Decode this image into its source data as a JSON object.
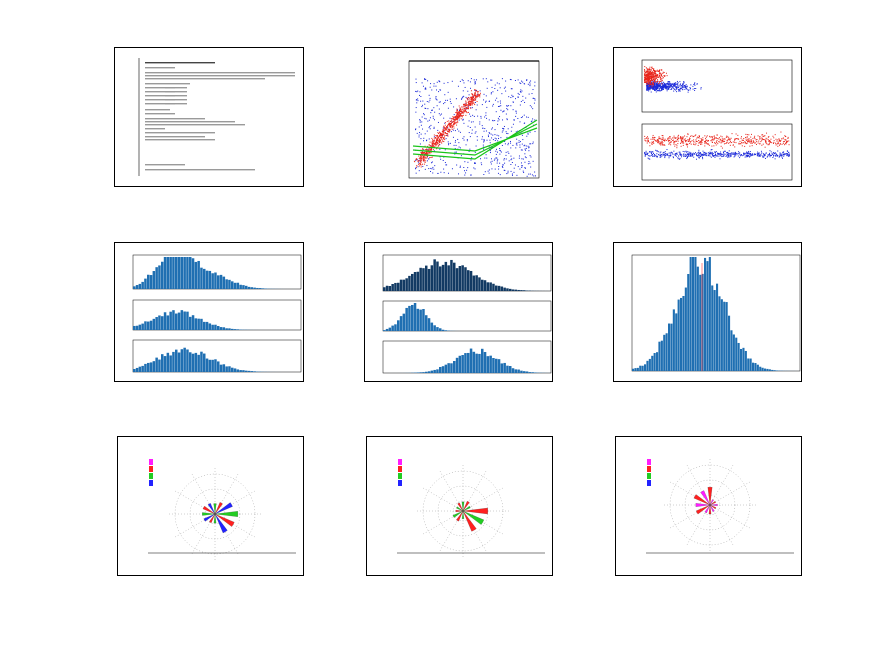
{
  "page": {
    "background": "#ffffff"
  },
  "thumbnails": [
    {
      "id": "summary-text"
    },
    {
      "id": "scatter-height-period"
    },
    {
      "id": "scatter-direction-period-hour"
    },
    {
      "id": "histograms-height"
    },
    {
      "id": "histograms-period"
    },
    {
      "id": "histogram-direction"
    },
    {
      "id": "rose-height"
    },
    {
      "id": "rose-period"
    },
    {
      "id": "rose-wind"
    }
  ],
  "colors": {
    "bar": "#1f6fb2",
    "bar_dark": "#123a63",
    "scatter_red": "#e8251b",
    "scatter_blue": "#1a28d8",
    "band_green": "#19c419",
    "rose_magenta": "#ff1cff",
    "rose_red": "#ff2020",
    "rose_green": "#22cc22",
    "rose_blue": "#2222ff"
  },
  "chart_data": [
    {
      "type": "table",
      "id": "summary-text"
    },
    {
      "type": "scatter",
      "id": "scatter-height-period",
      "series": [
        {
          "color": "red"
        },
        {
          "color": "blue"
        }
      ]
    },
    {
      "type": "scatter",
      "id": "scatter-direction-period-hour",
      "series": [
        {
          "color": "red"
        },
        {
          "color": "blue"
        }
      ]
    },
    {
      "type": "bar",
      "id": "histograms-height",
      "panels": 3
    },
    {
      "type": "bar",
      "id": "histograms-period",
      "panels": 3
    },
    {
      "type": "bar",
      "id": "histogram-direction",
      "panels": 1
    },
    {
      "type": "pie",
      "id": "rose-height"
    },
    {
      "type": "pie",
      "id": "rose-period"
    },
    {
      "type": "pie",
      "id": "rose-wind"
    }
  ]
}
